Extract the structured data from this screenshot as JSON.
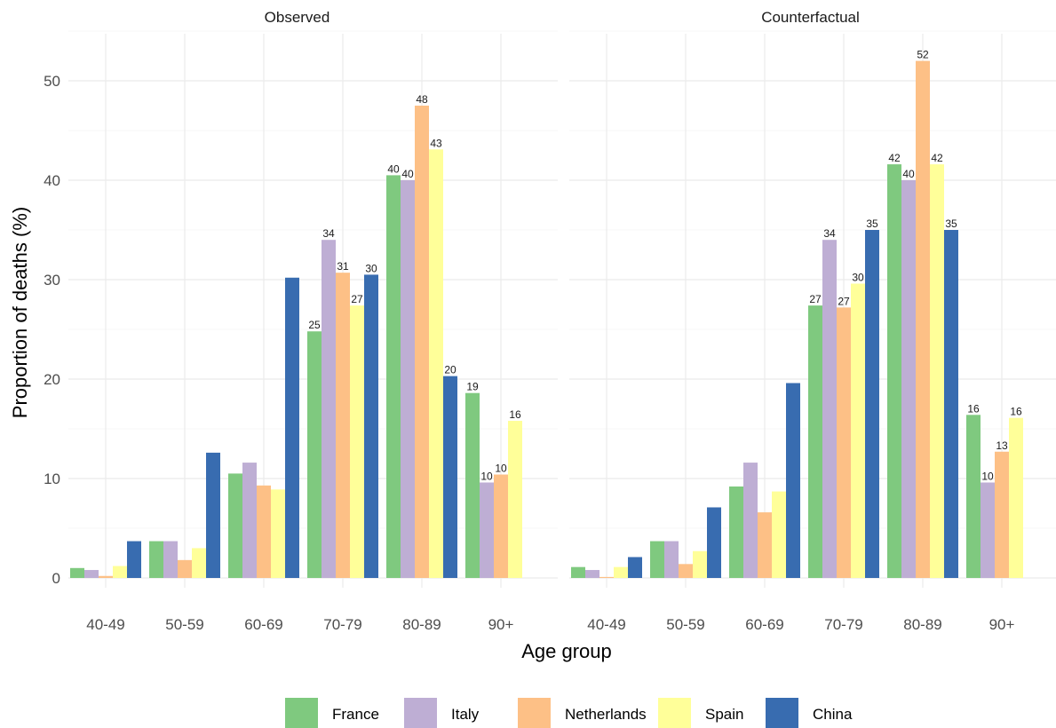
{
  "chart_data": {
    "type": "bar",
    "xlabel": "Age group",
    "ylabel": "Proportion of deaths (%)",
    "ylim": [
      0,
      55
    ],
    "yticks": [
      0,
      10,
      20,
      30,
      40,
      50
    ],
    "categories": [
      "40-49",
      "50-59",
      "60-69",
      "70-79",
      "80-89",
      "90+"
    ],
    "legend_position": "bottom",
    "colors": {
      "France": "#7fc97f",
      "Italy": "#beaed4",
      "Netherlands": "#fdc086",
      "Spain": "#ffff99",
      "China": "#386cb0"
    },
    "facets": [
      {
        "title": "Observed",
        "series": [
          {
            "name": "France",
            "values": [
              1.0,
              3.7,
              10.5,
              24.8,
              40.5,
              18.6
            ],
            "labels": [
              "",
              "",
              "",
              "25",
              "40",
              "19"
            ]
          },
          {
            "name": "Italy",
            "values": [
              0.8,
              3.7,
              11.6,
              34.0,
              40.0,
              9.6
            ],
            "labels": [
              "",
              "",
              "",
              "34",
              "40",
              "10"
            ]
          },
          {
            "name": "Netherlands",
            "values": [
              0.2,
              1.8,
              9.3,
              30.7,
              47.5,
              10.4
            ],
            "labels": [
              "",
              "",
              "",
              "31",
              "48",
              "10"
            ]
          },
          {
            "name": "Spain",
            "values": [
              1.2,
              3.0,
              8.9,
              27.4,
              43.1,
              15.8
            ],
            "labels": [
              "",
              "",
              "",
              "27",
              "43",
              "16"
            ]
          },
          {
            "name": "China",
            "values": [
              3.7,
              12.6,
              30.2,
              30.5,
              20.3,
              0
            ],
            "labels": [
              "",
              "",
              "",
              "30",
              "20",
              ""
            ]
          }
        ]
      },
      {
        "title": "Counterfactual",
        "series": [
          {
            "name": "France",
            "values": [
              1.1,
              3.7,
              9.2,
              27.4,
              41.6,
              16.4
            ],
            "labels": [
              "",
              "",
              "",
              "27",
              "42",
              "16"
            ]
          },
          {
            "name": "Italy",
            "values": [
              0.8,
              3.7,
              11.6,
              34.0,
              40.0,
              9.6
            ],
            "labels": [
              "",
              "",
              "",
              "34",
              "40",
              "10"
            ]
          },
          {
            "name": "Netherlands",
            "values": [
              0.1,
              1.4,
              6.6,
              27.2,
              52.0,
              12.7
            ],
            "labels": [
              "",
              "",
              "",
              "27",
              "52",
              "13"
            ]
          },
          {
            "name": "Spain",
            "values": [
              1.1,
              2.7,
              8.7,
              29.6,
              41.6,
              16.1
            ],
            "labels": [
              "",
              "",
              "",
              "30",
              "42",
              "16"
            ]
          },
          {
            "name": "China",
            "values": [
              2.1,
              7.1,
              19.6,
              35.0,
              35.0,
              0
            ],
            "labels": [
              "",
              "",
              "",
              "35",
              "35",
              ""
            ]
          }
        ]
      }
    ]
  }
}
